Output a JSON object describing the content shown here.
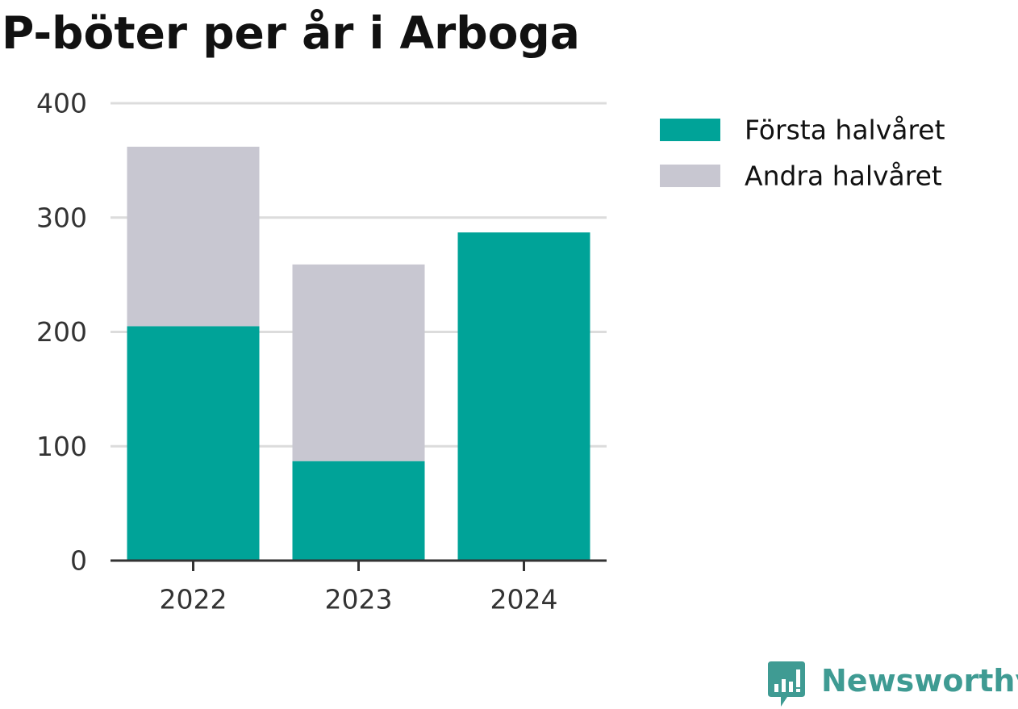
{
  "chart_data": {
    "type": "bar",
    "stacked": true,
    "title": "P-böter per år i Arboga",
    "categories": [
      "2022",
      "2023",
      "2024"
    ],
    "series": [
      {
        "name": "Första halvåret",
        "values": [
          205,
          87,
          287
        ],
        "color": "#00a398"
      },
      {
        "name": "Andra halvåret",
        "values": [
          157,
          172,
          0
        ],
        "color": "#c8c7d1"
      }
    ],
    "ylim": [
      0,
      400
    ],
    "yticks": [
      0,
      100,
      200,
      300,
      400
    ],
    "grid": true,
    "legend_position": "top-right",
    "xlabel": "",
    "ylabel": ""
  },
  "branding": {
    "logo_text": "Newsworthy",
    "logo_icon": "newsworthy-logo-icon",
    "color": "#3f9b93"
  }
}
